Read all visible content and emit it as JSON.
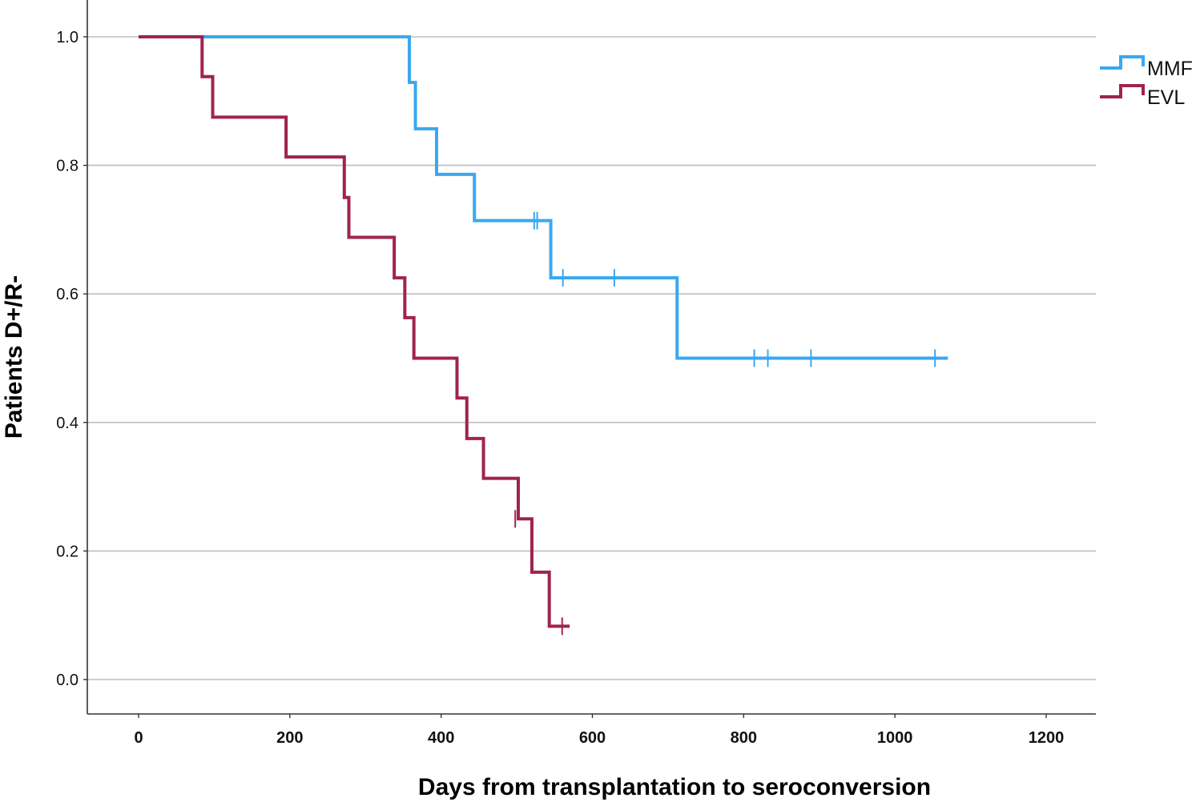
{
  "chart_data": {
    "type": "line",
    "subtype": "kaplan-meier step",
    "title": "",
    "xlabel": "Days from transplantation to seroconversion",
    "ylabel": "Patients D+/R-",
    "xlim": [
      -35,
      1265
    ],
    "ylim": [
      -0.053,
      1.053
    ],
    "x_ticks": [
      0,
      200,
      400,
      600,
      800,
      1000,
      1200
    ],
    "x_tick_labels": [
      "0",
      "200",
      "400",
      "600",
      "800",
      "1000",
      "1200"
    ],
    "y_ticks": [
      0.0,
      0.2,
      0.4,
      0.6,
      0.8,
      1.0
    ],
    "y_tick_labels": [
      "0.0",
      "0.2",
      "0.4",
      "0.6",
      "0.8",
      "1.0"
    ],
    "grid": "horizontal",
    "legend_position": "right",
    "series": [
      {
        "name": "MMF",
        "color": "#3aa8f0",
        "steps": [
          [
            0,
            1.0
          ],
          [
            358,
            0.929
          ],
          [
            366,
            0.857
          ],
          [
            394,
            0.786
          ],
          [
            444,
            0.714
          ],
          [
            545,
            0.625
          ],
          [
            712,
            0.5
          ]
        ],
        "end_x": 1070,
        "censored": [
          [
            523,
            0.714
          ],
          [
            527,
            0.714
          ],
          [
            561,
            0.625
          ],
          [
            629,
            0.625
          ],
          [
            814,
            0.5
          ],
          [
            832,
            0.5
          ],
          [
            889,
            0.5
          ],
          [
            1053,
            0.5
          ]
        ]
      },
      {
        "name": "EVL",
        "color": "#a0234f",
        "steps": [
          [
            0,
            1.0
          ],
          [
            84,
            0.938
          ],
          [
            98,
            0.875
          ],
          [
            195,
            0.813
          ],
          [
            272,
            0.75
          ],
          [
            278,
            0.688
          ],
          [
            338,
            0.625
          ],
          [
            352,
            0.563
          ],
          [
            364,
            0.5
          ],
          [
            421,
            0.438
          ],
          [
            434,
            0.375
          ],
          [
            456,
            0.313
          ],
          [
            502,
            0.25
          ],
          [
            520,
            0.167
          ],
          [
            543,
            0.083
          ]
        ],
        "end_x": 570,
        "censored": [
          [
            498,
            0.25
          ],
          [
            560,
            0.083
          ]
        ]
      }
    ]
  }
}
